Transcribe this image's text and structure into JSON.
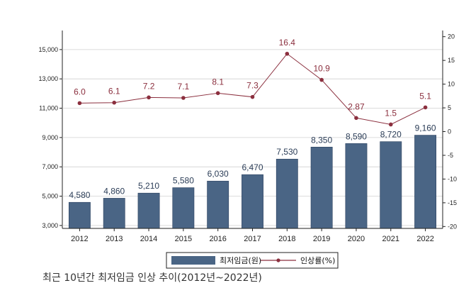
{
  "chart_data": {
    "type": "bar",
    "categories": [
      "2012",
      "2013",
      "2014",
      "2015",
      "2016",
      "2017",
      "2018",
      "2019",
      "2020",
      "2021",
      "2022"
    ],
    "series": [
      {
        "name": "최저임금(원)",
        "type": "bar",
        "axis": "left",
        "values": [
          4580,
          4860,
          5210,
          5580,
          6030,
          6470,
          7530,
          8350,
          8590,
          8720,
          9160
        ],
        "labels": [
          "4,580",
          "4,860",
          "5,210",
          "5,580",
          "6,030",
          "6,470",
          "7,530",
          "8,350",
          "8,590",
          "8,720",
          "9,160"
        ],
        "color": "#4a6585"
      },
      {
        "name": "인상률(%)",
        "type": "line",
        "axis": "right",
        "values": [
          6.0,
          6.1,
          7.2,
          7.1,
          8.1,
          7.3,
          16.4,
          10.9,
          2.87,
          1.5,
          5.1
        ],
        "labels": [
          "6.0",
          "6.1",
          "7.2",
          "7.1",
          "8.1",
          "7.3",
          "16.4",
          "10.9",
          "2.87",
          "1.5",
          "5.1"
        ],
        "color": "#8b2f3e"
      }
    ],
    "ylim_left": [
      2800,
      16300
    ],
    "yticks_left": [
      3000,
      5000,
      7000,
      9000,
      11000,
      13000,
      15000
    ],
    "yticklabels_left": [
      "3,000",
      "5,000",
      "7,000",
      "9,000",
      "11,000",
      "13,000",
      "15,000"
    ],
    "ylim_right": [
      -20.4,
      21.3
    ],
    "yticks_right": [
      -20,
      -15,
      -10,
      -5,
      0,
      5,
      10,
      15,
      20
    ],
    "yticklabels_right": [
      "-20",
      "-15",
      "-10",
      "-5",
      "0",
      "5",
      "10",
      "15",
      "20"
    ],
    "legend_position": "bottom",
    "caption": "최근 10년간 최저임금 인상 추이(2012년~2022년)"
  }
}
